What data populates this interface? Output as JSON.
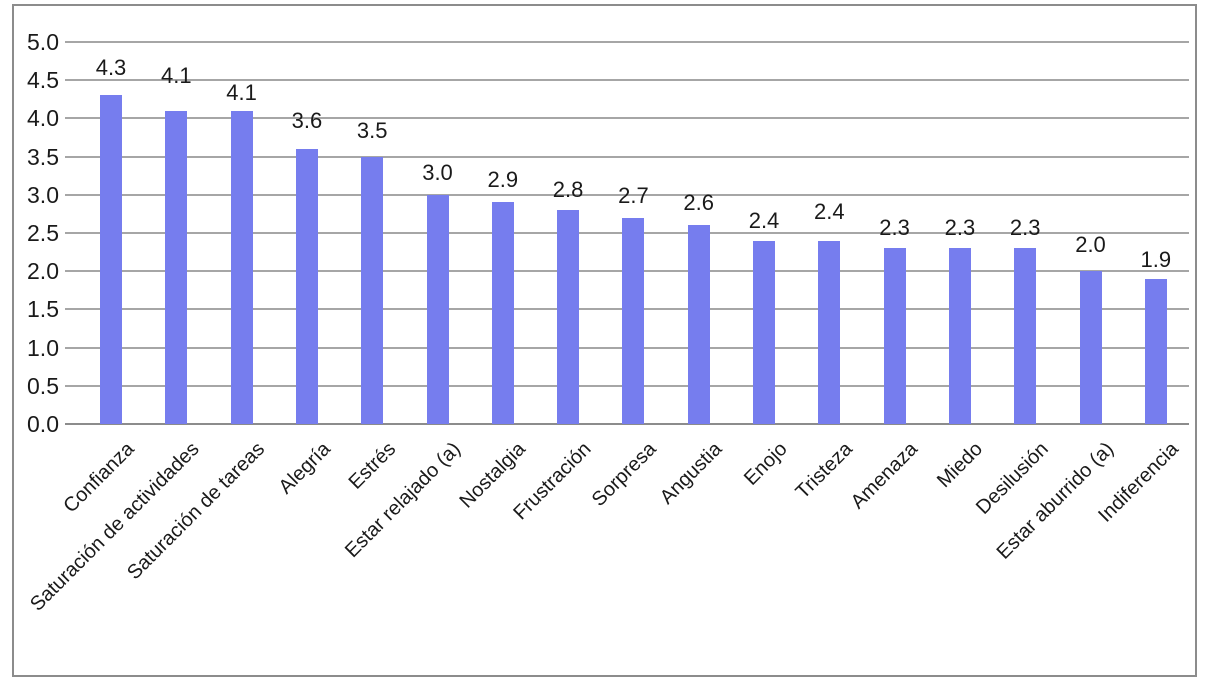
{
  "chart_data": {
    "type": "bar",
    "title": "",
    "xlabel": "",
    "ylabel": "",
    "categories": [
      "Confianza",
      "Saturación de actividades",
      "Saturación de tareas",
      "Alegría",
      "Estrés",
      "Estar relajado (a)",
      "Nostalgia",
      "Frustración",
      "Sorpresa",
      "Angustia",
      "Enojo",
      "Tristeza",
      "Amenaza",
      "Miedo",
      "Desilusión",
      "Estar aburrido (a)",
      "Indiferencia"
    ],
    "values": [
      4.3,
      4.1,
      4.1,
      3.6,
      3.5,
      3.0,
      2.9,
      2.8,
      2.7,
      2.6,
      2.4,
      2.4,
      2.3,
      2.3,
      2.3,
      2.0,
      1.9
    ],
    "ylim": [
      0,
      5
    ],
    "y_tick_step": 0.5,
    "y_tick_labels": [
      "5.0",
      "4.5",
      "4.0",
      "3.5",
      "3.0",
      "2.5",
      "2.0",
      "1.5",
      "1.0",
      "0.5",
      "0.0"
    ],
    "grid": true,
    "legend": false,
    "data_labels_shown": true,
    "colors": {
      "bar": "#767DEE",
      "gridline": "#A6A6A6",
      "frame_border": "#8C8C8C",
      "text": "#1A1A1A",
      "background": "#FFFFFF"
    },
    "layout": {
      "x_labels_rotation_deg": -45,
      "value_label_gaps": [
        14,
        22,
        5,
        15,
        13,
        9,
        9,
        7,
        9,
        9,
        7,
        16,
        7,
        7,
        7,
        13,
        6
      ]
    }
  }
}
